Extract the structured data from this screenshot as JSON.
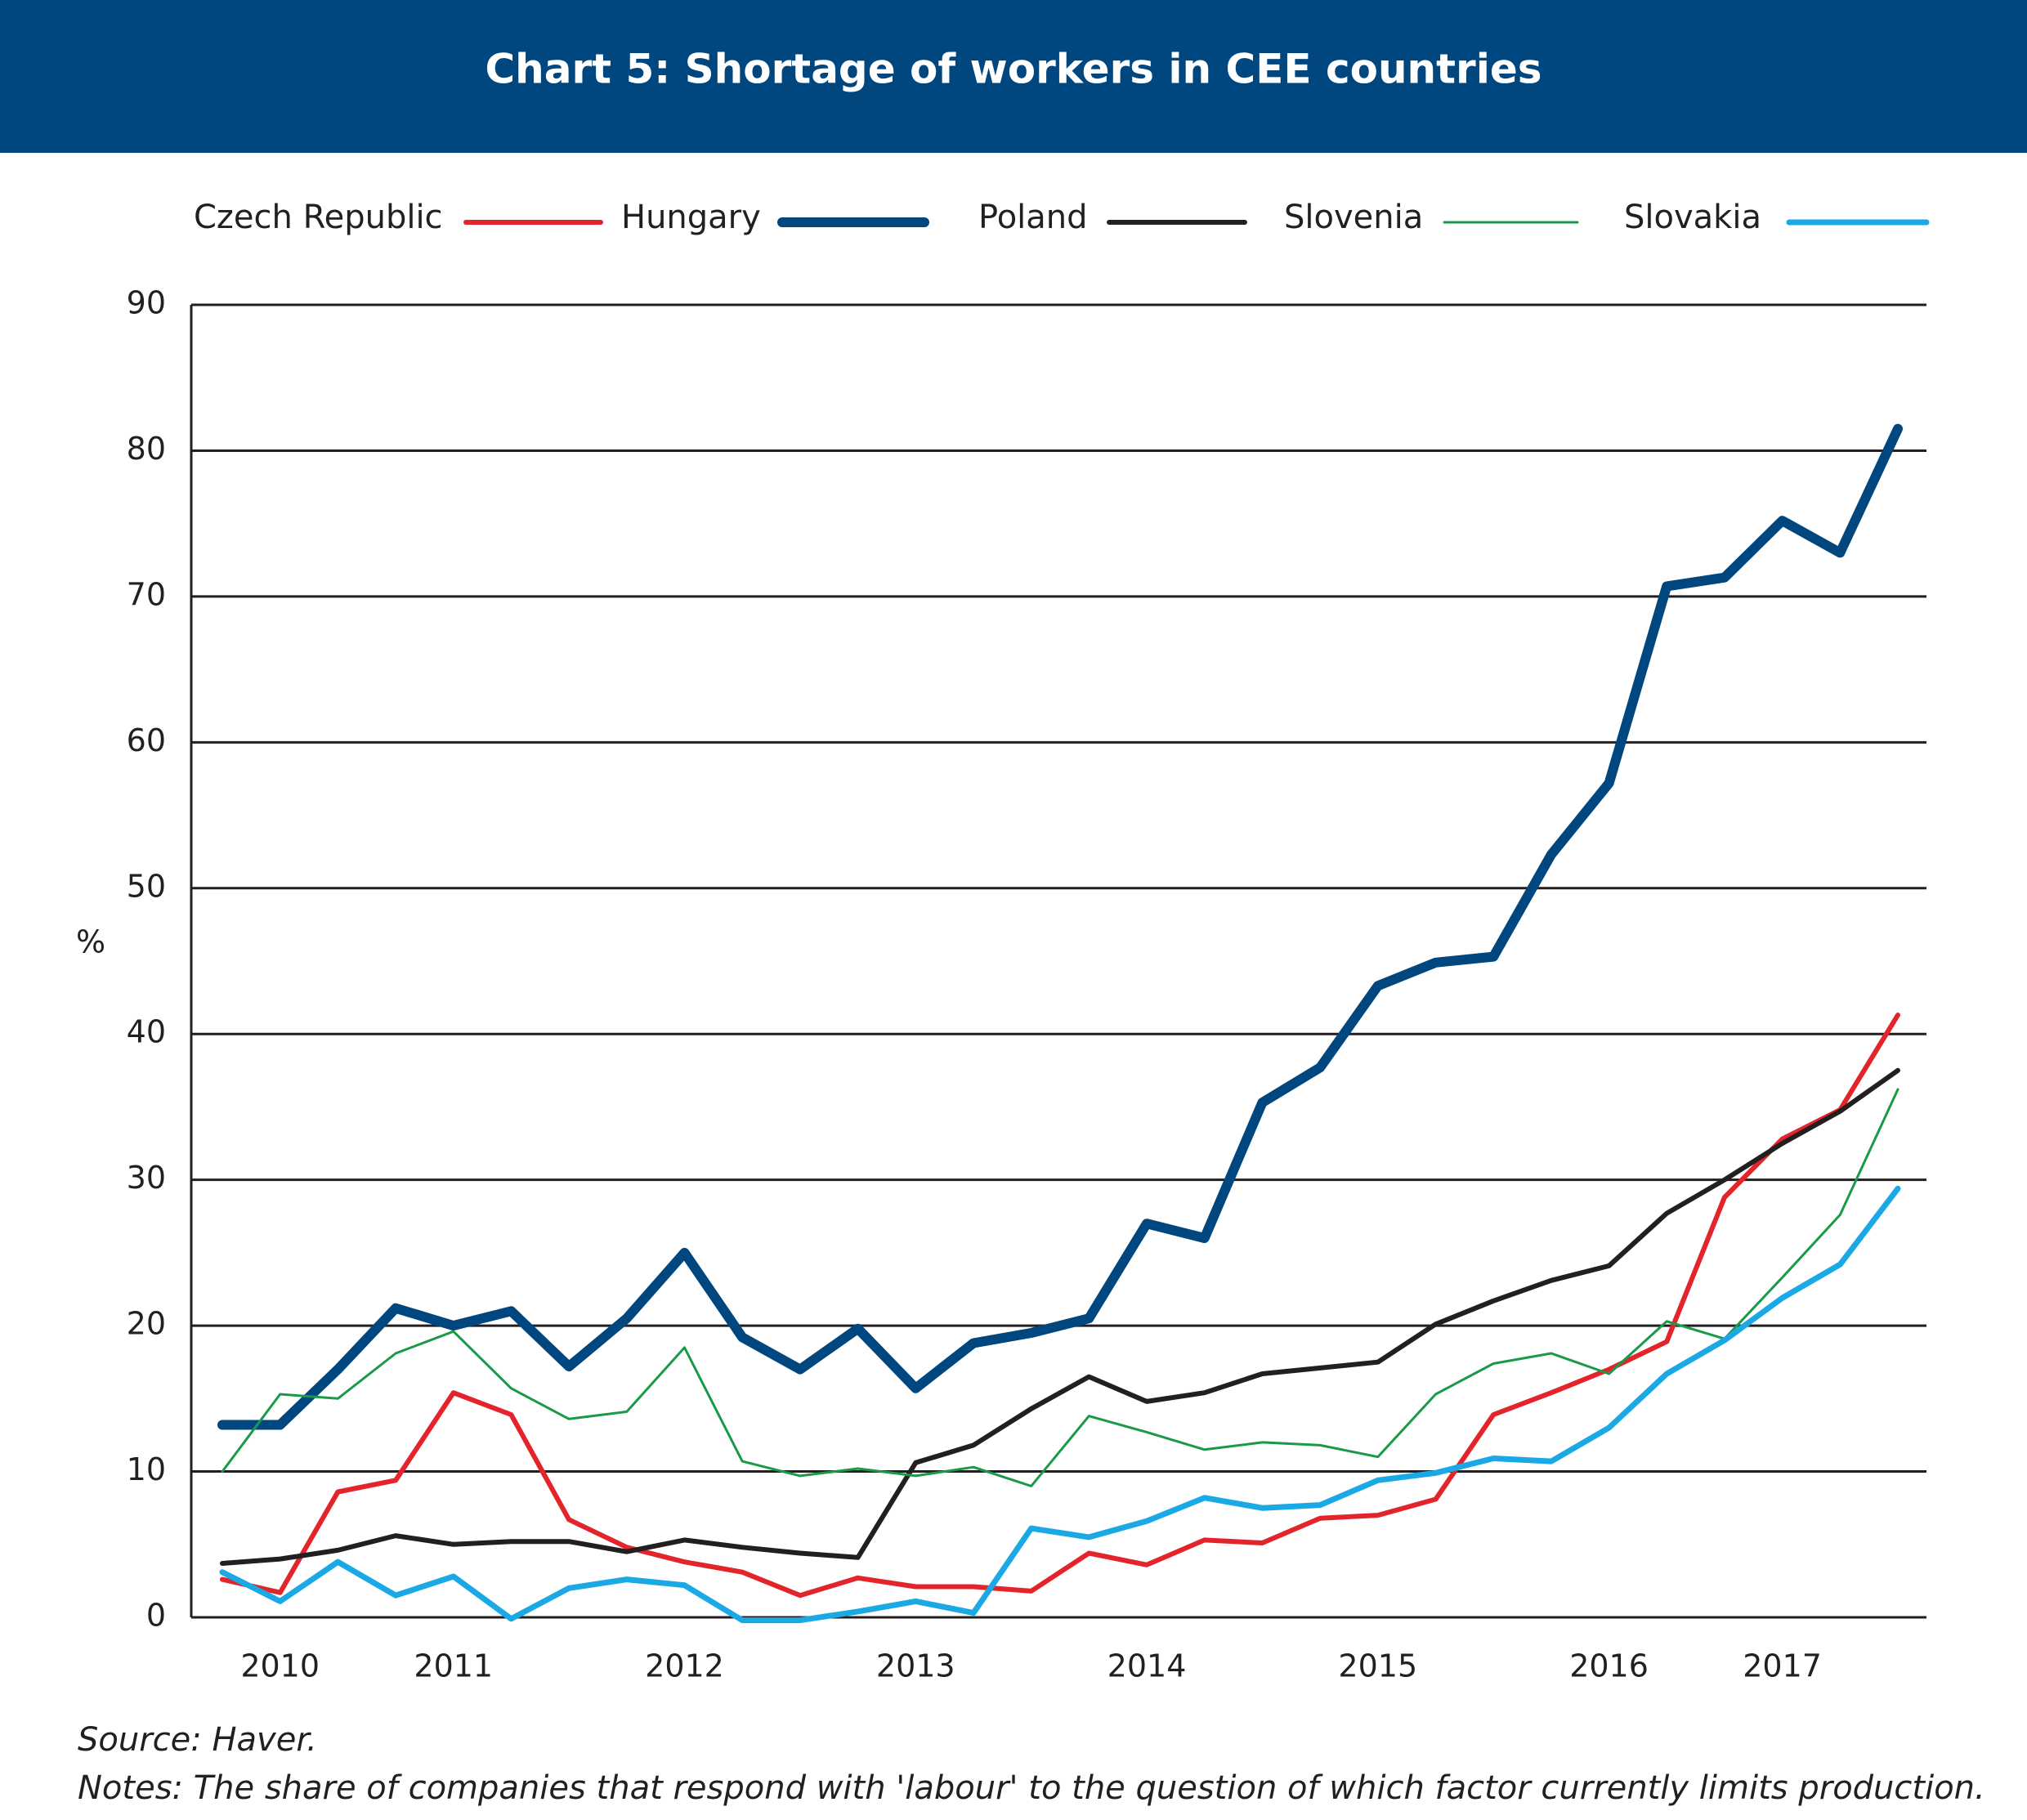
{
  "chart_data": {
    "type": "line",
    "title": "Chart 5: Shortage of workers in CEE countries",
    "y_label": "%",
    "categories": [
      null,
      "2010",
      null,
      null,
      "2011",
      null,
      null,
      null,
      "2012",
      null,
      null,
      null,
      "2013",
      null,
      null,
      null,
      "2014",
      null,
      null,
      null,
      "2015",
      null,
      null,
      null,
      "2016",
      null,
      null,
      "2017",
      null,
      null
    ],
    "series": [
      {
        "name": "Czech Republic",
        "color": "#e3242b",
        "values": [
          2.6,
          1.7,
          8.6,
          9.4,
          15.4,
          13.9,
          6.7,
          4.8,
          3.8,
          3.1,
          1.5,
          2.7,
          2.1,
          2.1,
          1.8,
          4.4,
          3.6,
          5.3,
          5.1,
          6.8,
          7.0,
          8.1,
          13.9,
          15.4,
          17.0,
          18.9,
          28.8,
          32.8,
          34.8,
          41.3
        ]
      },
      {
        "name": "Hungary",
        "color": "#00467f",
        "values": [
          13.2,
          13.2,
          17.0,
          21.2,
          20.0,
          21.0,
          17.2,
          20.5,
          25.0,
          19.2,
          17.0,
          19.8,
          15.7,
          18.8,
          19.5,
          20.5,
          27.0,
          26.0,
          35.3,
          37.7,
          43.3,
          44.9,
          45.3,
          52.3,
          57.2,
          70.7,
          71.3,
          75.2,
          73.0,
          81.5
        ]
      },
      {
        "name": "Poland",
        "color": "#231f20",
        "values": [
          3.7,
          4.0,
          4.6,
          5.6,
          5.0,
          5.2,
          5.2,
          4.5,
          5.3,
          4.8,
          4.4,
          4.1,
          10.6,
          11.8,
          14.3,
          16.5,
          14.8,
          15.4,
          16.7,
          17.1,
          17.5,
          20.1,
          21.7,
          23.1,
          24.1,
          27.7,
          30.0,
          32.5,
          34.7,
          37.5
        ]
      },
      {
        "name": "Slovenia",
        "color": "#1a9a48",
        "values": [
          10.0,
          15.3,
          15.0,
          18.1,
          19.6,
          15.7,
          13.6,
          14.1,
          18.5,
          10.7,
          9.7,
          10.2,
          9.7,
          10.3,
          9.0,
          13.8,
          12.7,
          11.5,
          12.0,
          11.8,
          11.0,
          15.3,
          17.4,
          18.1,
          16.7,
          20.3,
          19.1,
          23.3,
          27.6,
          36.2
        ]
      },
      {
        "name": "Slovakia",
        "color": "#1ba9e6",
        "values": [
          3.1,
          1.1,
          3.8,
          1.5,
          2.8,
          -0.1,
          2.0,
          2.6,
          2.2,
          -0.2,
          -0.2,
          0.4,
          1.1,
          0.3,
          6.1,
          5.5,
          6.6,
          8.2,
          7.5,
          7.7,
          9.4,
          9.9,
          10.9,
          10.7,
          13.0,
          16.7,
          19.0,
          21.9,
          24.2,
          29.4
        ]
      }
    ],
    "ylim": [
      0,
      90
    ],
    "yticks": [
      0,
      10,
      20,
      30,
      40,
      50,
      60,
      70,
      80,
      90
    ],
    "grid": true,
    "source": "Source: Haver.",
    "notes": "Notes: The share of companies that respond with 'labour' to the question of which factor currently limits production."
  }
}
